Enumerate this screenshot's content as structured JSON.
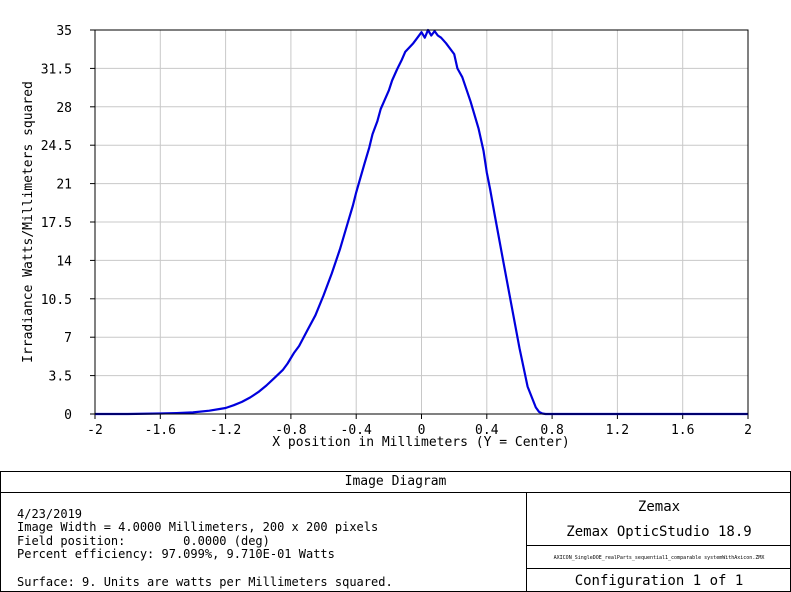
{
  "chart_data": {
    "type": "line",
    "xlabel": "X position in Millimeters (Y = Center)",
    "ylabel": "Irradiance Watts/Millimeters squared",
    "xlim": [
      -2,
      2
    ],
    "ylim": [
      0,
      35
    ],
    "x_ticks": [
      "-2",
      "-1.6",
      "-1.2",
      "-0.8",
      "-0.4",
      "0",
      "0.4",
      "0.8",
      "1.2",
      "1.6",
      "2"
    ],
    "y_ticks": [
      "0",
      "3.5",
      "7",
      "10.5",
      "14",
      "17.5",
      "21",
      "24.5",
      "28",
      "31.5",
      "35"
    ],
    "grid": true,
    "line_color": "#0000dd",
    "series": [
      {
        "x": [
          -2.0,
          -1.8,
          -1.6,
          -1.5,
          -1.4,
          -1.3,
          -1.2,
          -1.15,
          -1.1,
          -1.05,
          -1.0,
          -0.95,
          -0.9,
          -0.85,
          -0.82,
          -0.8,
          -0.78,
          -0.75,
          -0.7,
          -0.65,
          -0.6,
          -0.55,
          -0.5,
          -0.45,
          -0.42,
          -0.4,
          -0.35,
          -0.32,
          -0.3,
          -0.27,
          -0.25,
          -0.2,
          -0.18,
          -0.15,
          -0.12,
          -0.1,
          -0.05,
          -0.03,
          0.0,
          0.02,
          0.04,
          0.06,
          0.08,
          0.1,
          0.12,
          0.15,
          0.2,
          0.22,
          0.25,
          0.3,
          0.35,
          0.38,
          0.4,
          0.42,
          0.45,
          0.5,
          0.55,
          0.6,
          0.65,
          0.7,
          0.72,
          0.74,
          0.76,
          0.8,
          1.0,
          1.5,
          2.0
        ],
        "y": [
          0,
          0,
          0.05,
          0.08,
          0.15,
          0.3,
          0.55,
          0.8,
          1.1,
          1.5,
          2.0,
          2.6,
          3.3,
          4.0,
          4.6,
          5.1,
          5.6,
          6.2,
          7.6,
          9.0,
          10.8,
          12.8,
          15.0,
          17.5,
          19.0,
          20.2,
          22.8,
          24.3,
          25.5,
          26.7,
          27.8,
          29.5,
          30.4,
          31.4,
          32.3,
          33.0,
          33.8,
          34.2,
          34.8,
          34.3,
          35.0,
          34.5,
          34.9,
          34.5,
          34.3,
          33.8,
          32.8,
          31.5,
          30.7,
          28.5,
          26.0,
          24.0,
          22.0,
          20.5,
          18.0,
          14.0,
          10.0,
          6.0,
          2.5,
          0.6,
          0.2,
          0.05,
          0,
          0,
          0,
          0,
          0
        ]
      }
    ]
  },
  "panel": {
    "title": "Image Diagram",
    "date": "4/23/2019",
    "image_width": "Image Width = 4.0000 Millimeters, 200 x 200 pixels",
    "field_position": "Field position:        0.0000 (deg)",
    "percent_efficiency": "Percent efficiency: 97.099%, 9.710E-01 Watts",
    "surface": "Surface: 9. Units are watts per Millimeters squared.",
    "brand": "Zemax",
    "product": "Zemax OpticStudio 18.9",
    "filename": "AXICON_SingleDOE_realParts_sequential1_comparable systemWithAxicon.ZMX",
    "configuration": "Configuration 1 of 1"
  }
}
